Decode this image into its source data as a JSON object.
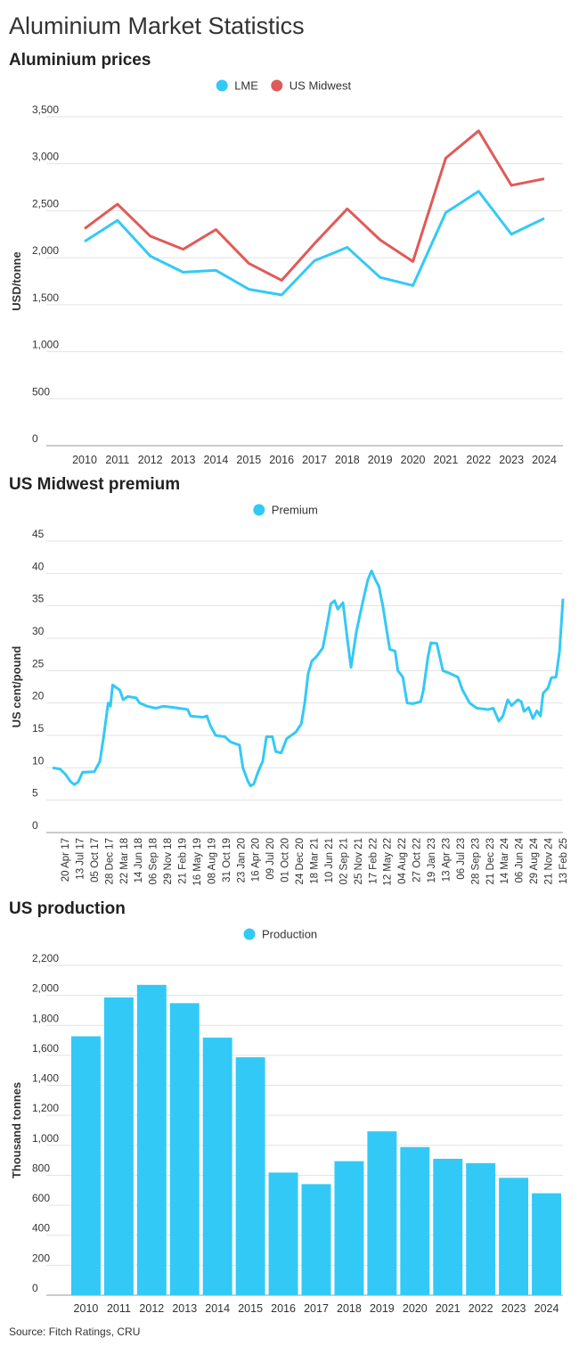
{
  "page_title": "Aluminium Market Statistics",
  "source": "Source: Fitch Ratings, CRU",
  "colors": {
    "lme": "#33c9f7",
    "midwest": "#e05a57",
    "grid": "#e2e2e2",
    "axis": "#999999"
  },
  "chart_data": [
    {
      "type": "line",
      "title": "Aluminium prices",
      "ylabel": "USD/tonne",
      "xlabel": "",
      "ylim": [
        0,
        3500
      ],
      "yticks": [
        0,
        500,
        1000,
        1500,
        2000,
        2500,
        3000,
        3500
      ],
      "ytick_labels": [
        "0",
        "500",
        "1,000",
        "1,500",
        "2,000",
        "2,500",
        "3,000",
        "3,500"
      ],
      "grid": true,
      "legend_position": "top-center",
      "categories": [
        "2010",
        "2011",
        "2012",
        "2013",
        "2014",
        "2015",
        "2016",
        "2017",
        "2018",
        "2019",
        "2020",
        "2021",
        "2022",
        "2023",
        "2024"
      ],
      "series": [
        {
          "name": "LME",
          "color": "#33c9f7",
          "values": [
            2173,
            2398,
            2018,
            1846,
            1866,
            1665,
            1604,
            1968,
            2110,
            1791,
            1704,
            2480,
            2707,
            2250,
            2419
          ]
        },
        {
          "name": "US Midwest",
          "color": "#e05a57",
          "values": [
            2310,
            2570,
            2230,
            2090,
            2300,
            1940,
            1760,
            2150,
            2520,
            2190,
            1960,
            3060,
            3350,
            2770,
            2840
          ]
        }
      ]
    },
    {
      "type": "line",
      "title": "US Midwest premium",
      "ylabel": "US cent/pound",
      "xlabel": "",
      "ylim": [
        0,
        45
      ],
      "yticks": [
        0,
        5,
        10,
        15,
        20,
        25,
        30,
        35,
        40,
        45
      ],
      "ytick_labels": [
        "0",
        "5",
        "10",
        "15",
        "20",
        "25",
        "30",
        "35",
        "40",
        "45"
      ],
      "grid": true,
      "legend_position": "top-center",
      "x_start": "2017-04-20",
      "x_end": "2025-02-13",
      "x_tick_labels": [
        "20 Apr 17",
        "13 Jul 17",
        "05 Oct 17",
        "28 Dec 17",
        "22 Mar 18",
        "14 Jun 18",
        "06 Sep 18",
        "29 Nov 18",
        "21 Feb 19",
        "16 May 19",
        "08 Aug 19",
        "31 Oct 19",
        "23 Jan 20",
        "16 Apr 20",
        "09 Jul 20",
        "01 Oct 20",
        "24 Dec 20",
        "18 Mar 21",
        "10 Jun 21",
        "02 Sep 21",
        "25 Nov 21",
        "17 Feb 22",
        "12 May 22",
        "04 Aug 22",
        "27 Oct 22",
        "19 Jan 23",
        "13 Apr 23",
        "06 Jul 23",
        "28 Sep 23",
        "21 Dec 23",
        "14 Mar 24",
        "06 Jun 24",
        "29 Aug 24",
        "21 Nov 24",
        "13 Feb 25"
      ],
      "series": [
        {
          "name": "Premium",
          "color": "#33c9f7",
          "points": [
            [
              "2017-04-20",
              10.0
            ],
            [
              "2017-06-01",
              9.8
            ],
            [
              "2017-07-01",
              9.0
            ],
            [
              "2017-08-01",
              7.8
            ],
            [
              "2017-08-20",
              7.4
            ],
            [
              "2017-09-10",
              7.8
            ],
            [
              "2017-10-05",
              9.3
            ],
            [
              "2017-12-10",
              9.4
            ],
            [
              "2018-01-10",
              11.0
            ],
            [
              "2018-02-01",
              15.0
            ],
            [
              "2018-02-25",
              20.0
            ],
            [
              "2018-03-10",
              19.5
            ],
            [
              "2018-03-22",
              22.8
            ],
            [
              "2018-05-01",
              22.0
            ],
            [
              "2018-05-20",
              20.5
            ],
            [
              "2018-06-14",
              21.0
            ],
            [
              "2018-08-01",
              20.8
            ],
            [
              "2018-08-20",
              20.0
            ],
            [
              "2018-10-01",
              19.5
            ],
            [
              "2018-11-20",
              19.2
            ],
            [
              "2019-01-01",
              19.5
            ],
            [
              "2019-03-01",
              19.3
            ],
            [
              "2019-05-16",
              19.0
            ],
            [
              "2019-06-01",
              18.0
            ],
            [
              "2019-08-08",
              17.8
            ],
            [
              "2019-09-01",
              18.0
            ],
            [
              "2019-09-20",
              16.5
            ],
            [
              "2019-10-20",
              15.0
            ],
            [
              "2019-12-10",
              14.8
            ],
            [
              "2020-01-10",
              14.0
            ],
            [
              "2020-03-01",
              13.5
            ],
            [
              "2020-03-20",
              10.0
            ],
            [
              "2020-04-16",
              8.0
            ],
            [
              "2020-05-01",
              7.2
            ],
            [
              "2020-05-20",
              7.5
            ],
            [
              "2020-06-15",
              9.5
            ],
            [
              "2020-07-09",
              11.0
            ],
            [
              "2020-07-30",
              14.8
            ],
            [
              "2020-09-01",
              14.8
            ],
            [
              "2020-09-20",
              12.5
            ],
            [
              "2020-10-20",
              12.3
            ],
            [
              "2020-11-20",
              14.5
            ],
            [
              "2021-01-10",
              15.5
            ],
            [
              "2021-02-10",
              16.8
            ],
            [
              "2021-03-01",
              20.0
            ],
            [
              "2021-03-20",
              24.5
            ],
            [
              "2021-04-10",
              26.5
            ],
            [
              "2021-05-01",
              27.0
            ],
            [
              "2021-06-10",
              28.5
            ],
            [
              "2021-07-01",
              31.5
            ],
            [
              "2021-07-25",
              35.3
            ],
            [
              "2021-08-15",
              35.8
            ],
            [
              "2021-09-02",
              34.5
            ],
            [
              "2021-10-01",
              35.5
            ],
            [
              "2021-10-25",
              30.0
            ],
            [
              "2021-11-15",
              25.5
            ],
            [
              "2021-12-15",
              31.0
            ],
            [
              "2022-01-15",
              35.0
            ],
            [
              "2022-02-17",
              39.0
            ],
            [
              "2022-03-10",
              40.4
            ],
            [
              "2022-04-01",
              39.0
            ],
            [
              "2022-04-20",
              38.0
            ],
            [
              "2022-05-12",
              35.0
            ],
            [
              "2022-06-01",
              31.5
            ],
            [
              "2022-06-20",
              28.3
            ],
            [
              "2022-07-20",
              28.0
            ],
            [
              "2022-08-04",
              25.0
            ],
            [
              "2022-09-01",
              24.0
            ],
            [
              "2022-09-25",
              20.0
            ],
            [
              "2022-10-27",
              19.9
            ],
            [
              "2022-12-10",
              20.2
            ],
            [
              "2022-12-25",
              22.0
            ],
            [
              "2023-01-19",
              27.0
            ],
            [
              "2023-02-05",
              29.3
            ],
            [
              "2023-03-10",
              29.2
            ],
            [
              "2023-04-13",
              25.0
            ],
            [
              "2023-05-20",
              24.6
            ],
            [
              "2023-07-06",
              24.0
            ],
            [
              "2023-08-01",
              22.0
            ],
            [
              "2023-09-10",
              20.0
            ],
            [
              "2023-10-20",
              19.2
            ],
            [
              "2023-12-21",
              19.0
            ],
            [
              "2024-01-20",
              19.2
            ],
            [
              "2024-02-20",
              17.2
            ],
            [
              "2024-03-14",
              18.0
            ],
            [
              "2024-04-10",
              20.5
            ],
            [
              "2024-05-01",
              19.6
            ],
            [
              "2024-06-06",
              20.5
            ],
            [
              "2024-06-25",
              20.2
            ],
            [
              "2024-07-10",
              18.7
            ],
            [
              "2024-08-05",
              19.3
            ],
            [
              "2024-08-29",
              17.6
            ],
            [
              "2024-09-20",
              18.8
            ],
            [
              "2024-10-10",
              18.0
            ],
            [
              "2024-10-25",
              21.5
            ],
            [
              "2024-11-21",
              22.3
            ],
            [
              "2024-12-10",
              23.9
            ],
            [
              "2025-01-05",
              24.0
            ],
            [
              "2025-01-25",
              28.0
            ],
            [
              "2025-02-13",
              36.1
            ]
          ]
        }
      ]
    },
    {
      "type": "bar",
      "title": "US production",
      "ylabel": "Thousand tonnes",
      "xlabel": "",
      "ylim": [
        0,
        2200
      ],
      "yticks": [
        0,
        200,
        400,
        600,
        800,
        1000,
        1200,
        1400,
        1600,
        1800,
        2000,
        2200
      ],
      "ytick_labels": [
        "0",
        "200",
        "400",
        "600",
        "800",
        "1,000",
        "1,200",
        "1,400",
        "1,600",
        "1,800",
        "2,000",
        "2,200"
      ],
      "grid": true,
      "legend_position": "top-center",
      "categories": [
        "2010",
        "2011",
        "2012",
        "2013",
        "2014",
        "2015",
        "2016",
        "2017",
        "2018",
        "2019",
        "2020",
        "2021",
        "2022",
        "2023",
        "2024"
      ],
      "series": [
        {
          "name": "Production",
          "color": "#33c9f7",
          "values": [
            1727,
            1986,
            2070,
            1948,
            1718,
            1587,
            818,
            741,
            894,
            1093,
            988,
            910,
            881,
            783,
            680
          ]
        }
      ]
    }
  ]
}
